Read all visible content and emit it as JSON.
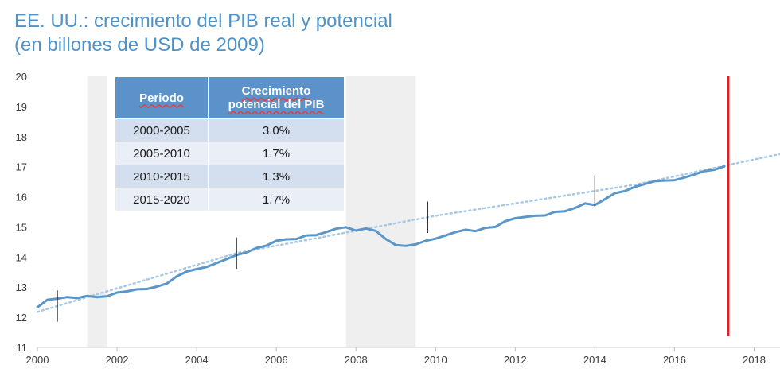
{
  "title": {
    "line1": "EE. UU.: crecimiento del PIB real y potencial",
    "line2": "(en billones de USD de 2009)"
  },
  "table": {
    "headers": {
      "period": "Periodo",
      "growth_line1": "Crecimiento",
      "growth_line2": "potencial  del PIB"
    },
    "rows": [
      {
        "period": "2000-2005",
        "growth": "3.0%"
      },
      {
        "period": "2005-2010",
        "growth": "1.7%"
      },
      {
        "period": "2010-2015",
        "growth": "1.3%"
      },
      {
        "period": "2015-2020",
        "growth": "1.7%"
      }
    ]
  },
  "chart_data": {
    "type": "line",
    "title": "EE. UU.: crecimiento del PIB real y potencial (en billones de USD de 2009)",
    "xlabel": "",
    "ylabel": "",
    "xlim": [
      2000,
      2018.65
    ],
    "ylim": [
      11,
      20
    ],
    "x_ticks": [
      2000,
      2002,
      2004,
      2006,
      2008,
      2010,
      2012,
      2014,
      2016,
      2018
    ],
    "y_ticks": [
      11,
      12,
      13,
      14,
      15,
      16,
      17,
      18,
      19,
      20
    ],
    "grid": false,
    "recession_bands": [
      [
        2001.25,
        2001.75
      ],
      [
        2007.75,
        2009.5
      ]
    ],
    "markers": [
      2000.5,
      2005.0,
      2009.8,
      2014.0
    ],
    "vertical_reference_line": 2017.35,
    "series": [
      {
        "name": "",
        "style": "solid",
        "color": "#5b96c8",
        "points": [
          [
            2000.0,
            12.33
          ],
          [
            2000.25,
            12.58
          ],
          [
            2000.5,
            12.62
          ],
          [
            2000.75,
            12.67
          ],
          [
            2001.0,
            12.64
          ],
          [
            2001.25,
            12.71
          ],
          [
            2001.5,
            12.67
          ],
          [
            2001.75,
            12.7
          ],
          [
            2002.0,
            12.82
          ],
          [
            2002.25,
            12.86
          ],
          [
            2002.5,
            12.93
          ],
          [
            2002.75,
            12.94
          ],
          [
            2003.0,
            13.02
          ],
          [
            2003.25,
            13.12
          ],
          [
            2003.5,
            13.36
          ],
          [
            2003.75,
            13.52
          ],
          [
            2004.0,
            13.6
          ],
          [
            2004.25,
            13.67
          ],
          [
            2004.5,
            13.8
          ],
          [
            2004.75,
            13.93
          ],
          [
            2005.0,
            14.07
          ],
          [
            2005.25,
            14.15
          ],
          [
            2005.5,
            14.3
          ],
          [
            2005.75,
            14.38
          ],
          [
            2006.0,
            14.54
          ],
          [
            2006.25,
            14.59
          ],
          [
            2006.5,
            14.6
          ],
          [
            2006.75,
            14.72
          ],
          [
            2007.0,
            14.73
          ],
          [
            2007.25,
            14.83
          ],
          [
            2007.5,
            14.94
          ],
          [
            2007.75,
            14.99
          ],
          [
            2008.0,
            14.88
          ],
          [
            2008.25,
            14.95
          ],
          [
            2008.5,
            14.87
          ],
          [
            2008.75,
            14.6
          ],
          [
            2009.0,
            14.4
          ],
          [
            2009.25,
            14.37
          ],
          [
            2009.5,
            14.42
          ],
          [
            2009.75,
            14.54
          ],
          [
            2010.0,
            14.61
          ],
          [
            2010.25,
            14.72
          ],
          [
            2010.5,
            14.83
          ],
          [
            2010.75,
            14.91
          ],
          [
            2011.0,
            14.86
          ],
          [
            2011.25,
            14.97
          ],
          [
            2011.5,
            15.0
          ],
          [
            2011.75,
            15.19
          ],
          [
            2012.0,
            15.29
          ],
          [
            2012.25,
            15.33
          ],
          [
            2012.5,
            15.37
          ],
          [
            2012.75,
            15.38
          ],
          [
            2013.0,
            15.5
          ],
          [
            2013.25,
            15.52
          ],
          [
            2013.5,
            15.63
          ],
          [
            2013.75,
            15.78
          ],
          [
            2014.0,
            15.73
          ],
          [
            2014.25,
            15.92
          ],
          [
            2014.5,
            16.12
          ],
          [
            2014.75,
            16.19
          ],
          [
            2015.0,
            16.33
          ],
          [
            2015.25,
            16.42
          ],
          [
            2015.5,
            16.52
          ],
          [
            2015.75,
            16.54
          ],
          [
            2016.0,
            16.55
          ],
          [
            2016.25,
            16.64
          ],
          [
            2016.5,
            16.74
          ],
          [
            2016.75,
            16.85
          ],
          [
            2017.0,
            16.9
          ],
          [
            2017.25,
            17.01
          ]
        ]
      },
      {
        "name": "",
        "style": "dotted",
        "color": "#a8c8e4",
        "points": [
          [
            2000.0,
            12.18
          ],
          [
            2005.0,
            14.13
          ],
          [
            2010.0,
            15.37
          ],
          [
            2015.0,
            16.4
          ],
          [
            2018.65,
            17.42
          ]
        ]
      }
    ]
  }
}
